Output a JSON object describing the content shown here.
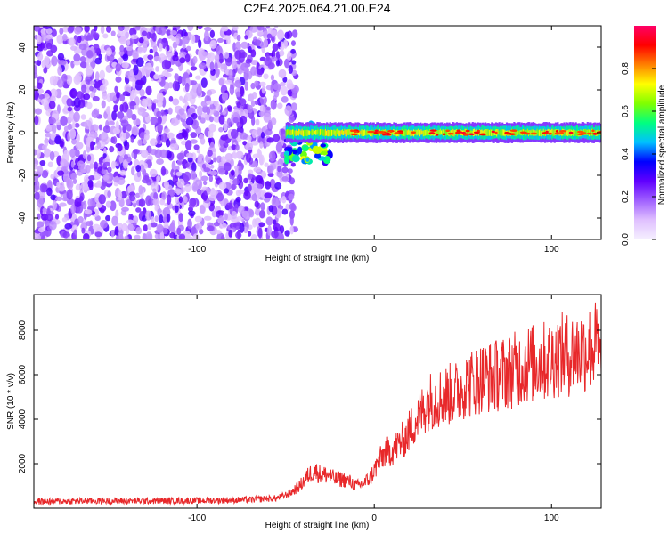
{
  "title": "C2E4.2025.064.21.00.E24",
  "colors": {
    "line": "#e8282a",
    "colorbar_stops": [
      "#f5f0ff",
      "#e0c0ff",
      "#a060ff",
      "#6000ff",
      "#0000ff",
      "#00c0ff",
      "#00ff80",
      "#80ff00",
      "#ffff00",
      "#ff8000",
      "#ff0000",
      "#ff0066"
    ]
  },
  "chart_data": [
    {
      "type": "heatmap",
      "title": "",
      "xlabel": "Height of straight line (km)",
      "ylabel": "Frequency (Hz)",
      "xlim": [
        -192,
        128
      ],
      "ylim": [
        -50,
        50
      ],
      "xticks": [
        -100,
        0,
        100
      ],
      "xtick_labels": [
        "-100",
        "0",
        "100"
      ],
      "yticks": [
        -40,
        -20,
        0,
        20,
        40
      ],
      "ytick_labels": [
        "-40",
        "-20",
        "0",
        "20",
        "40"
      ],
      "grid": false,
      "description_of_field": {
        "noise_region_x": [
          -192,
          -50
        ],
        "transition_region_x": [
          -50,
          -25
        ],
        "signal_band_frequency_hz": 0,
        "signal_band_halfwidth_hz": 3,
        "peak_amplitude_range": [
          0.85,
          0.95
        ]
      },
      "colorbar": {
        "label": "Normalized spectral amplitude",
        "range": [
          0.0,
          1.0
        ],
        "ticks": [
          0.0,
          0.2,
          0.4,
          0.6,
          0.8
        ],
        "tick_labels": [
          "0.0",
          "0.2",
          "0.4",
          "0.6",
          "0.8"
        ]
      }
    },
    {
      "type": "line",
      "title": "",
      "xlabel": "Height of straight line (km)",
      "ylabel": "SNR (10 * v/v)",
      "xlim": [
        -192,
        128
      ],
      "ylim": [
        0,
        9600
      ],
      "xticks": [
        -100,
        0,
        100
      ],
      "xtick_labels": [
        "-100",
        "0",
        "100"
      ],
      "yticks": [
        2000,
        4000,
        6000,
        8000
      ],
      "ytick_labels": [
        "2000",
        "4000",
        "6000",
        "8000"
      ],
      "grid": false,
      "series": [
        {
          "x": [
            -192,
            -170,
            -150,
            -130,
            -110,
            -90,
            -70,
            -55,
            -48,
            -42,
            -38,
            -34,
            -30,
            -26,
            -22,
            -18,
            -14,
            -10,
            -6,
            -2,
            2,
            6,
            10,
            14,
            18,
            22,
            26,
            30,
            34,
            38,
            42,
            46,
            50,
            54,
            58,
            62,
            66,
            70,
            74,
            78,
            82,
            86,
            90,
            94,
            98,
            102,
            106,
            110,
            114,
            118,
            122,
            126,
            128
          ],
          "values": [
            300,
            320,
            330,
            330,
            340,
            350,
            380,
            450,
            650,
            1000,
            1400,
            1700,
            1500,
            1500,
            1300,
            1300,
            1200,
            1000,
            1100,
            1400,
            2000,
            2500,
            2600,
            2900,
            3200,
            3800,
            4200,
            4800,
            4900,
            5000,
            5100,
            5200,
            5500,
            5600,
            5800,
            5900,
            5900,
            6000,
            6100,
            6200,
            6300,
            6500,
            6500,
            6600,
            6600,
            6800,
            6900,
            6900,
            7000,
            7100,
            7200,
            7400,
            6000
          ]
        }
      ]
    }
  ]
}
